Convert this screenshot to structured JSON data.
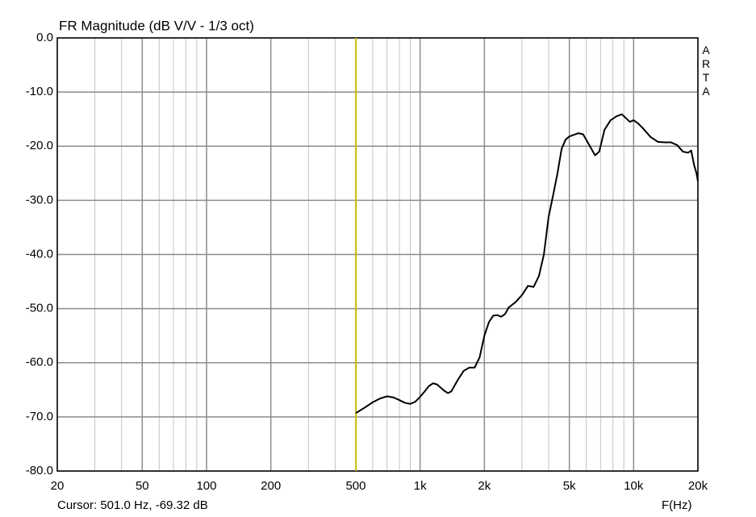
{
  "chart_data": {
    "type": "line",
    "title": "FR Magnitude (dB V/V - 1/3 oct)",
    "watermark": "ARTA",
    "x_label": "F(Hz)",
    "log_x": true,
    "grid": true,
    "color": "#000000",
    "cursor": {
      "x": 501.0,
      "y": -69.32,
      "label": "Cursor: 501.0 Hz, -69.32 dB",
      "color": "#c8c000"
    },
    "xlim": [
      20,
      20000
    ],
    "ylim": [
      -80,
      0
    ],
    "xticks": [
      20,
      50,
      100,
      200,
      500,
      {
        "value": 1000,
        "label": "1k"
      },
      {
        "value": 2000,
        "label": "2k"
      },
      {
        "value": 5000,
        "label": "5k"
      },
      {
        "value": 10000,
        "label": "10k"
      },
      {
        "value": 20000,
        "label": "20k"
      }
    ],
    "xminorticks": [
      30,
      40,
      60,
      70,
      80,
      90,
      300,
      400,
      600,
      700,
      800,
      900,
      3000,
      4000,
      6000,
      7000,
      8000,
      9000
    ],
    "yticks": [
      {
        "value": 0,
        "label": "0.0"
      },
      {
        "value": -10,
        "label": "-10.0"
      },
      {
        "value": -20,
        "label": "-20.0"
      },
      {
        "value": -30,
        "label": "-30.0"
      },
      {
        "value": -40,
        "label": "-40.0"
      },
      {
        "value": -50,
        "label": "-50.0"
      },
      {
        "value": -60,
        "label": "-60.0"
      },
      {
        "value": -70,
        "label": "-70.0"
      },
      {
        "value": -80,
        "label": "-80.0"
      }
    ],
    "x": [
      500,
      550,
      600,
      650,
      700,
      750,
      800,
      850,
      900,
      950,
      1000,
      1050,
      1100,
      1150,
      1200,
      1300,
      1350,
      1400,
      1500,
      1600,
      1700,
      1800,
      1900,
      2000,
      2100,
      2200,
      2300,
      2400,
      2500,
      2600,
      2800,
      3000,
      3200,
      3400,
      3600,
      3800,
      4000,
      4200,
      4400,
      4600,
      4800,
      5000,
      5500,
      5800,
      6200,
      6600,
      6900,
      7300,
      7800,
      8300,
      8800,
      9200,
      9600,
      10000,
      10500,
      11000,
      12000,
      13000,
      14000,
      15000,
      16000,
      17000,
      18000,
      18600,
      19200,
      19700,
      20000
    ],
    "values": [
      -69.3,
      -68.3,
      -67.3,
      -66.6,
      -66.2,
      -66.4,
      -66.9,
      -67.4,
      -67.6,
      -67.2,
      -66.3,
      -65.3,
      -64.3,
      -63.8,
      -64.0,
      -65.2,
      -65.6,
      -65.3,
      -63.2,
      -61.5,
      -60.9,
      -60.9,
      -59.0,
      -55.0,
      -52.5,
      -51.3,
      -51.2,
      -51.5,
      -51.0,
      -49.8,
      -48.8,
      -47.5,
      -45.8,
      -46.0,
      -44.0,
      -40.0,
      -33.0,
      -29.0,
      -25.0,
      -20.5,
      -18.8,
      -18.2,
      -17.6,
      -17.8,
      -19.8,
      -21.7,
      -21.0,
      -17.0,
      -15.2,
      -14.5,
      -14.1,
      -14.8,
      -15.5,
      -15.2,
      -15.8,
      -16.6,
      -18.3,
      -19.2,
      -19.3,
      -19.3,
      -19.8,
      -21.0,
      -21.2,
      -20.8,
      -23.5,
      -25.0,
      -26.5
    ]
  }
}
